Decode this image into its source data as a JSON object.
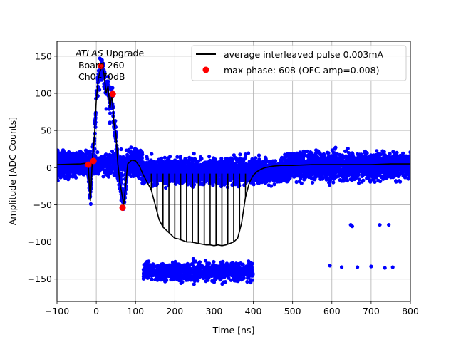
{
  "chart_data": {
    "type": "scatter",
    "xlabel": "Time [ns]",
    "ylabel": "Amplitude [ADC Counts]",
    "xlim": [
      -100,
      800
    ],
    "ylim": [
      -180,
      170
    ],
    "xticks": [
      -100,
      0,
      100,
      200,
      300,
      400,
      500,
      600,
      700,
      800
    ],
    "yticks": [
      -150,
      -100,
      -50,
      0,
      50,
      100,
      150
    ],
    "grid": true,
    "legend_position": "top-right",
    "annotation_lines": [
      "ATLAS Upgrade",
      " Board 260",
      " Ch0 -70dB"
    ],
    "annotation_italic_word": "ATLAS",
    "colors": {
      "scatter": "#0000ff",
      "pulse": "#000000",
      "max_phase": "#ff0000"
    },
    "series": [
      {
        "name": "average interleaved pulse 0.003mA",
        "kind": "line",
        "x": [
          -100,
          -40,
          -25,
          -20,
          -15,
          -10,
          -5,
          0,
          5,
          10,
          15,
          20,
          25,
          30,
          35,
          40,
          45,
          50,
          55,
          60,
          70,
          80,
          90,
          100,
          110,
          120,
          130,
          140,
          150,
          160,
          170,
          180,
          190,
          200,
          210,
          220,
          230,
          240,
          250,
          260,
          270,
          280,
          290,
          300,
          310,
          320,
          330,
          340,
          350,
          360,
          370,
          380,
          390,
          400,
          410,
          420,
          430,
          440,
          450,
          470,
          500,
          550,
          600,
          650,
          700,
          750,
          800
        ],
        "y": [
          4,
          5,
          6,
          0,
          -45,
          10,
          40,
          90,
          120,
          130,
          137,
          125,
          100,
          110,
          80,
          100,
          60,
          45,
          5,
          -20,
          -50,
          5,
          10,
          9,
          2,
          -10,
          -20,
          -30,
          -50,
          -70,
          -80,
          -85,
          -90,
          -95,
          -96,
          -98,
          -100,
          -100,
          -101,
          -102,
          -103,
          -104,
          -104,
          -105,
          -104,
          -105,
          -104,
          -102,
          -100,
          -95,
          -75,
          -40,
          -20,
          -10,
          -5,
          -2,
          0,
          1,
          2,
          3,
          3,
          4,
          4,
          4,
          4,
          5,
          5
        ]
      },
      {
        "name": "max phase: 608 (OFC amp=0.008)",
        "kind": "markers",
        "x": [
          -20,
          -7,
          12,
          42,
          67
        ],
        "y": [
          4,
          9,
          137,
          99,
          -54
        ]
      }
    ],
    "scatter_cloud": {
      "name": "interleaved samples",
      "bands": [
        {
          "x_range": [
            -100,
            120
          ],
          "y_center": 4,
          "y_spread": 24
        },
        {
          "x_range": [
            120,
            480
          ],
          "y_center": -5,
          "y_spread": 20
        },
        {
          "x_range": [
            480,
            800
          ],
          "y_center": 2,
          "y_spread": 22
        },
        {
          "x_range": [
            120,
            400
          ],
          "y_center": -140,
          "y_spread": 14
        }
      ],
      "isolated_points": [
        [
          595,
          -132
        ],
        [
          625,
          -134
        ],
        [
          648,
          -77
        ],
        [
          652,
          -79
        ],
        [
          665,
          -134
        ],
        [
          700,
          -133
        ],
        [
          722,
          -77
        ],
        [
          735,
          -135
        ],
        [
          745,
          -77
        ],
        [
          755,
          -134
        ]
      ]
    }
  }
}
